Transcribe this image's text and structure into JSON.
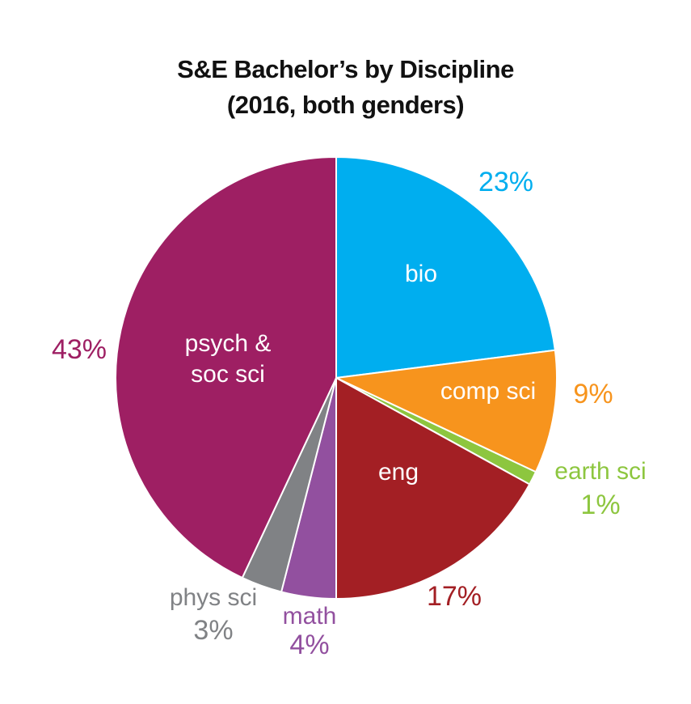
{
  "chart_data": {
    "type": "pie",
    "title": "S&E Bachelor’s by Discipline",
    "subtitle": "(2016, both genders)",
    "start_angle_deg": 0,
    "direction": "clockwise",
    "slices": [
      {
        "name": "bio",
        "value": 23,
        "label": "23%",
        "color": "#00AEEF"
      },
      {
        "name": "comp sci",
        "value": 9,
        "label": "9%",
        "color": "#F7941D"
      },
      {
        "name": "earth sci",
        "value": 1,
        "label": "1%",
        "color": "#8DC63F"
      },
      {
        "name": "eng",
        "value": 17,
        "label": "17%",
        "color": "#A31F24"
      },
      {
        "name": "math",
        "value": 4,
        "label": "4%",
        "color": "#92509F"
      },
      {
        "name": "phys sci",
        "value": 3,
        "label": "3%",
        "color": "#808285"
      },
      {
        "name": "psych & soc sci",
        "value": 43,
        "label": "43%",
        "color": "#9E1F63"
      }
    ]
  }
}
